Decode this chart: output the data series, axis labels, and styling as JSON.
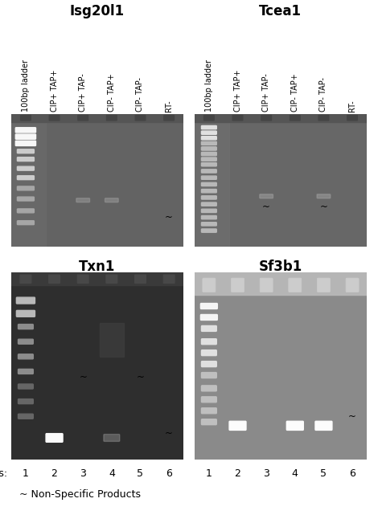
{
  "title_topleft": "Isg20l1",
  "title_topright": "Tcea1",
  "title_bottomleft": "Txn1",
  "title_bottomright": "Sf3b1",
  "lane_labels": [
    "100bp ladder",
    "CIP+ TAP+",
    "CIP+ TAP-",
    "CIP- TAP+",
    "CIP- TAP-",
    "RT-"
  ],
  "nonspec_label": "~ Non-Specific Products",
  "bg_color": "#ffffff",
  "title_fontsize": 12,
  "label_fontsize": 7.0,
  "footer_fontsize": 9
}
